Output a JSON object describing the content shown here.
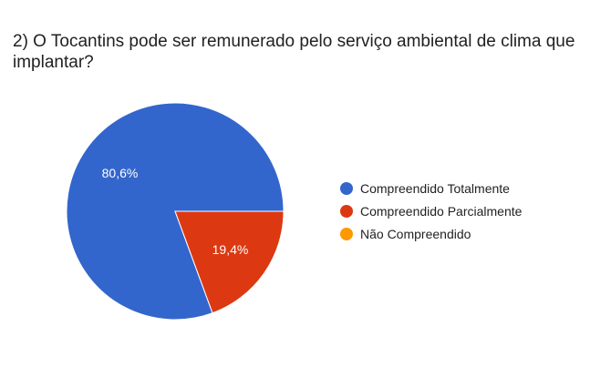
{
  "question": {
    "title": "2) O Tocantins pode ser remunerado pelo serviço ambiental de clima que implantar?"
  },
  "chart_data": {
    "type": "pie",
    "title": "2) O Tocantins pode ser remunerado pelo serviço ambiental de clima que implantar?",
    "categories": [
      "Compreendido Totalmente",
      "Compreendido Parcialmente",
      "Não Compreendido"
    ],
    "values": [
      80.6,
      19.4,
      0
    ],
    "labels": [
      "80,6%",
      "19,4%",
      ""
    ],
    "colors": [
      "#3366cc",
      "#dc3912",
      "#ff9900"
    ],
    "legend_position": "right"
  }
}
